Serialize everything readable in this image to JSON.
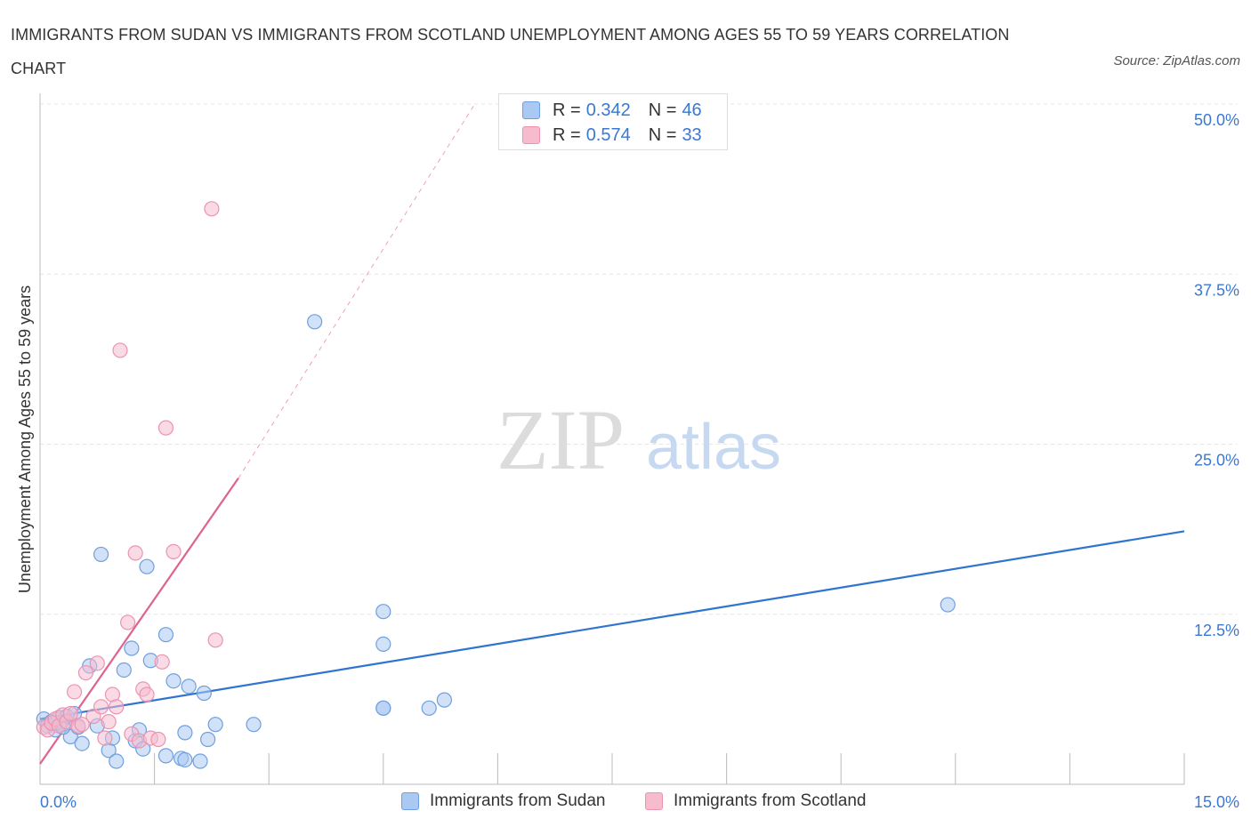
{
  "title": "IMMIGRANTS FROM SUDAN VS IMMIGRANTS FROM SCOTLAND UNEMPLOYMENT AMONG AGES 55 TO 59 YEARS CORRELATION CHART",
  "source": "Source: ZipAtlas.com",
  "watermark": {
    "zip": "ZIP",
    "atlas": "atlas"
  },
  "legend": {
    "sudan": {
      "r_label": "R =",
      "r_value": "0.342",
      "n_label": "N =",
      "n_value": "46"
    },
    "scotland": {
      "r_label": "R =",
      "r_value": "0.574",
      "n_label": "N =",
      "n_value": "33"
    }
  },
  "colors": {
    "sudan_fill": "#a9c8f2",
    "sudan_stroke": "#6f9fe0",
    "sudan_line": "#2f74d0",
    "scotland_fill": "#f6bccd",
    "scotland_stroke": "#ec93b0",
    "scotland_line": "#e0628e",
    "accent_text": "#3b78d0",
    "grid": "#e6e6e6"
  },
  "chart_data": {
    "type": "scatter",
    "title": "IMMIGRANTS FROM SUDAN VS IMMIGRANTS FROM SCOTLAND UNEMPLOYMENT AMONG AGES 55 TO 59 YEARS CORRELATION CHART",
    "xlabel": "",
    "ylabel": "Unemployment Among Ages 55 to 59 years",
    "xlim": [
      0,
      15
    ],
    "ylim": [
      0,
      50
    ],
    "x_tick_labels": [
      "0.0%",
      "15.0%"
    ],
    "y_ticks": [
      12.5,
      25.0,
      37.5,
      50.0
    ],
    "y_tick_labels": [
      "12.5%",
      "25.0%",
      "37.5%",
      "50.0%"
    ],
    "grid": true,
    "legend_position": "top-center",
    "series": [
      {
        "name": "Immigrants from Sudan",
        "R": 0.342,
        "N": 46,
        "trend": {
          "x0": 0,
          "y0": 4.8,
          "x1": 15,
          "y1": 18.6,
          "style": "solid"
        },
        "points": [
          [
            0.05,
            4.8
          ],
          [
            0.1,
            4.3
          ],
          [
            0.15,
            4.6
          ],
          [
            0.2,
            4.0
          ],
          [
            0.25,
            4.9
          ],
          [
            0.3,
            4.4
          ],
          [
            0.35,
            5.0
          ],
          [
            0.4,
            3.5
          ],
          [
            0.5,
            4.2
          ],
          [
            0.55,
            3.0
          ],
          [
            0.65,
            8.7
          ],
          [
            0.75,
            4.3
          ],
          [
            0.8,
            16.9
          ],
          [
            0.9,
            2.5
          ],
          [
            0.95,
            3.4
          ],
          [
            1.0,
            1.7
          ],
          [
            1.1,
            8.4
          ],
          [
            1.2,
            10.0
          ],
          [
            1.25,
            3.2
          ],
          [
            1.3,
            4.0
          ],
          [
            1.35,
            2.6
          ],
          [
            1.4,
            16.0
          ],
          [
            1.45,
            9.1
          ],
          [
            1.65,
            11.0
          ],
          [
            1.65,
            2.1
          ],
          [
            1.75,
            7.6
          ],
          [
            1.85,
            1.9
          ],
          [
            1.9,
            1.8
          ],
          [
            1.9,
            3.8
          ],
          [
            1.95,
            7.2
          ],
          [
            2.1,
            1.7
          ],
          [
            2.15,
            6.7
          ],
          [
            2.2,
            3.3
          ],
          [
            2.3,
            4.4
          ],
          [
            2.8,
            4.4
          ],
          [
            3.6,
            34.0
          ],
          [
            4.5,
            5.6
          ],
          [
            4.5,
            5.6
          ],
          [
            4.5,
            10.3
          ],
          [
            4.5,
            12.7
          ],
          [
            5.1,
            5.6
          ],
          [
            5.3,
            6.2
          ],
          [
            11.9,
            13.2
          ],
          [
            0.2,
            4.5
          ],
          [
            0.3,
            4.2
          ],
          [
            0.45,
            5.2
          ]
        ]
      },
      {
        "name": "Immigrants from Scotland",
        "R": 0.574,
        "N": 33,
        "trend": {
          "x0": 0,
          "y0": 1.5,
          "x1": 2.6,
          "y1": 22.5,
          "style": "solid",
          "extension_to": {
            "x": 5.7,
            "y": 50
          }
        },
        "points": [
          [
            0.05,
            4.2
          ],
          [
            0.1,
            4.0
          ],
          [
            0.15,
            4.5
          ],
          [
            0.2,
            4.8
          ],
          [
            0.25,
            4.3
          ],
          [
            0.3,
            5.1
          ],
          [
            0.35,
            4.6
          ],
          [
            0.4,
            5.2
          ],
          [
            0.45,
            6.8
          ],
          [
            0.5,
            4.3
          ],
          [
            0.6,
            8.2
          ],
          [
            0.7,
            5.0
          ],
          [
            0.75,
            8.9
          ],
          [
            0.8,
            5.7
          ],
          [
            0.85,
            3.4
          ],
          [
            0.9,
            4.6
          ],
          [
            0.95,
            6.6
          ],
          [
            1.0,
            5.7
          ],
          [
            1.05,
            31.9
          ],
          [
            1.15,
            11.9
          ],
          [
            1.2,
            3.7
          ],
          [
            1.25,
            17.0
          ],
          [
            1.3,
            3.2
          ],
          [
            1.35,
            7.0
          ],
          [
            1.4,
            6.6
          ],
          [
            1.45,
            3.4
          ],
          [
            1.55,
            3.3
          ],
          [
            1.6,
            9.0
          ],
          [
            1.65,
            26.2
          ],
          [
            1.75,
            17.1
          ],
          [
            2.25,
            42.3
          ],
          [
            2.3,
            10.6
          ],
          [
            0.55,
            4.4
          ]
        ]
      }
    ]
  },
  "bottom_legend": {
    "sudan": "Immigrants from Sudan",
    "scotland": "Immigrants from Scotland"
  }
}
